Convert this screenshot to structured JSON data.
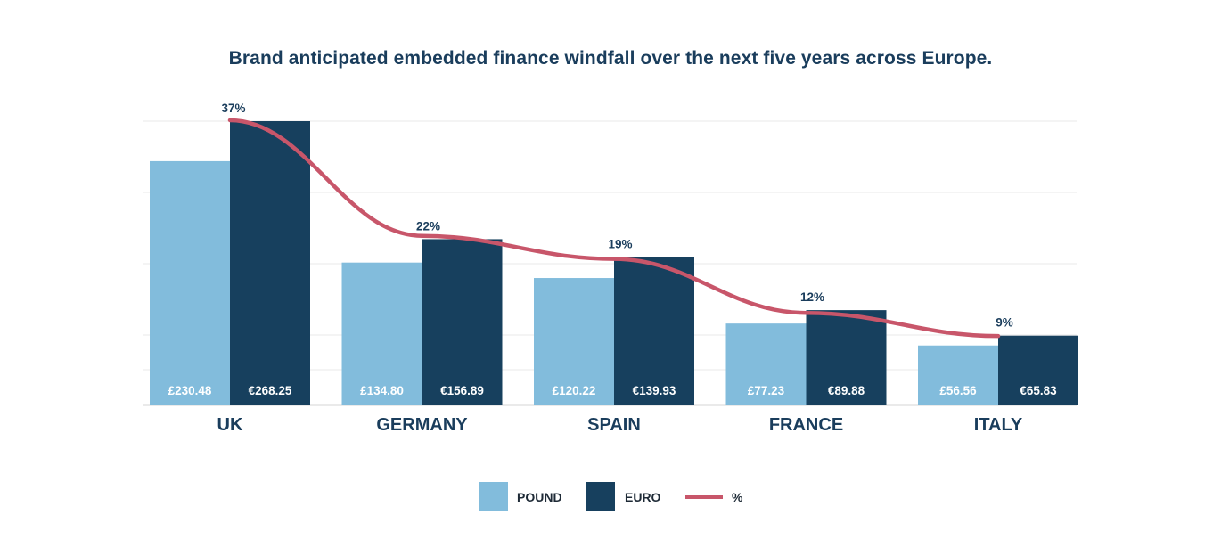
{
  "chart_data": {
    "type": "bar",
    "title": "Brand anticipated embedded finance windfall over the next five years across Europe.",
    "categories": [
      "UK",
      "GERMANY",
      "SPAIN",
      "FRANCE",
      "ITALY"
    ],
    "series": [
      {
        "name": "POUND",
        "type": "bar",
        "color": "#82bcdc",
        "values": [
          230.48,
          134.8,
          120.22,
          77.23,
          56.56
        ],
        "labels": [
          "£230.48",
          "£134.80",
          "£120.22",
          "£77.23",
          "£56.56"
        ]
      },
      {
        "name": "EURO",
        "type": "bar",
        "color": "#17405e",
        "values": [
          268.25,
          156.89,
          139.93,
          89.88,
          65.83
        ],
        "labels": [
          "€268.25",
          "€156.89",
          "€139.93",
          "€89.88",
          "€65.83"
        ]
      },
      {
        "name": "%",
        "type": "line",
        "color": "#c8566a",
        "values": [
          37,
          22,
          19,
          12,
          9
        ],
        "labels": [
          "37%",
          "22%",
          "19%",
          "12%",
          "9%"
        ]
      }
    ],
    "ylim": [
      0,
      268.25
    ],
    "percent_ylim": [
      0,
      40
    ],
    "grid": true,
    "legend_position": "bottom-center"
  }
}
